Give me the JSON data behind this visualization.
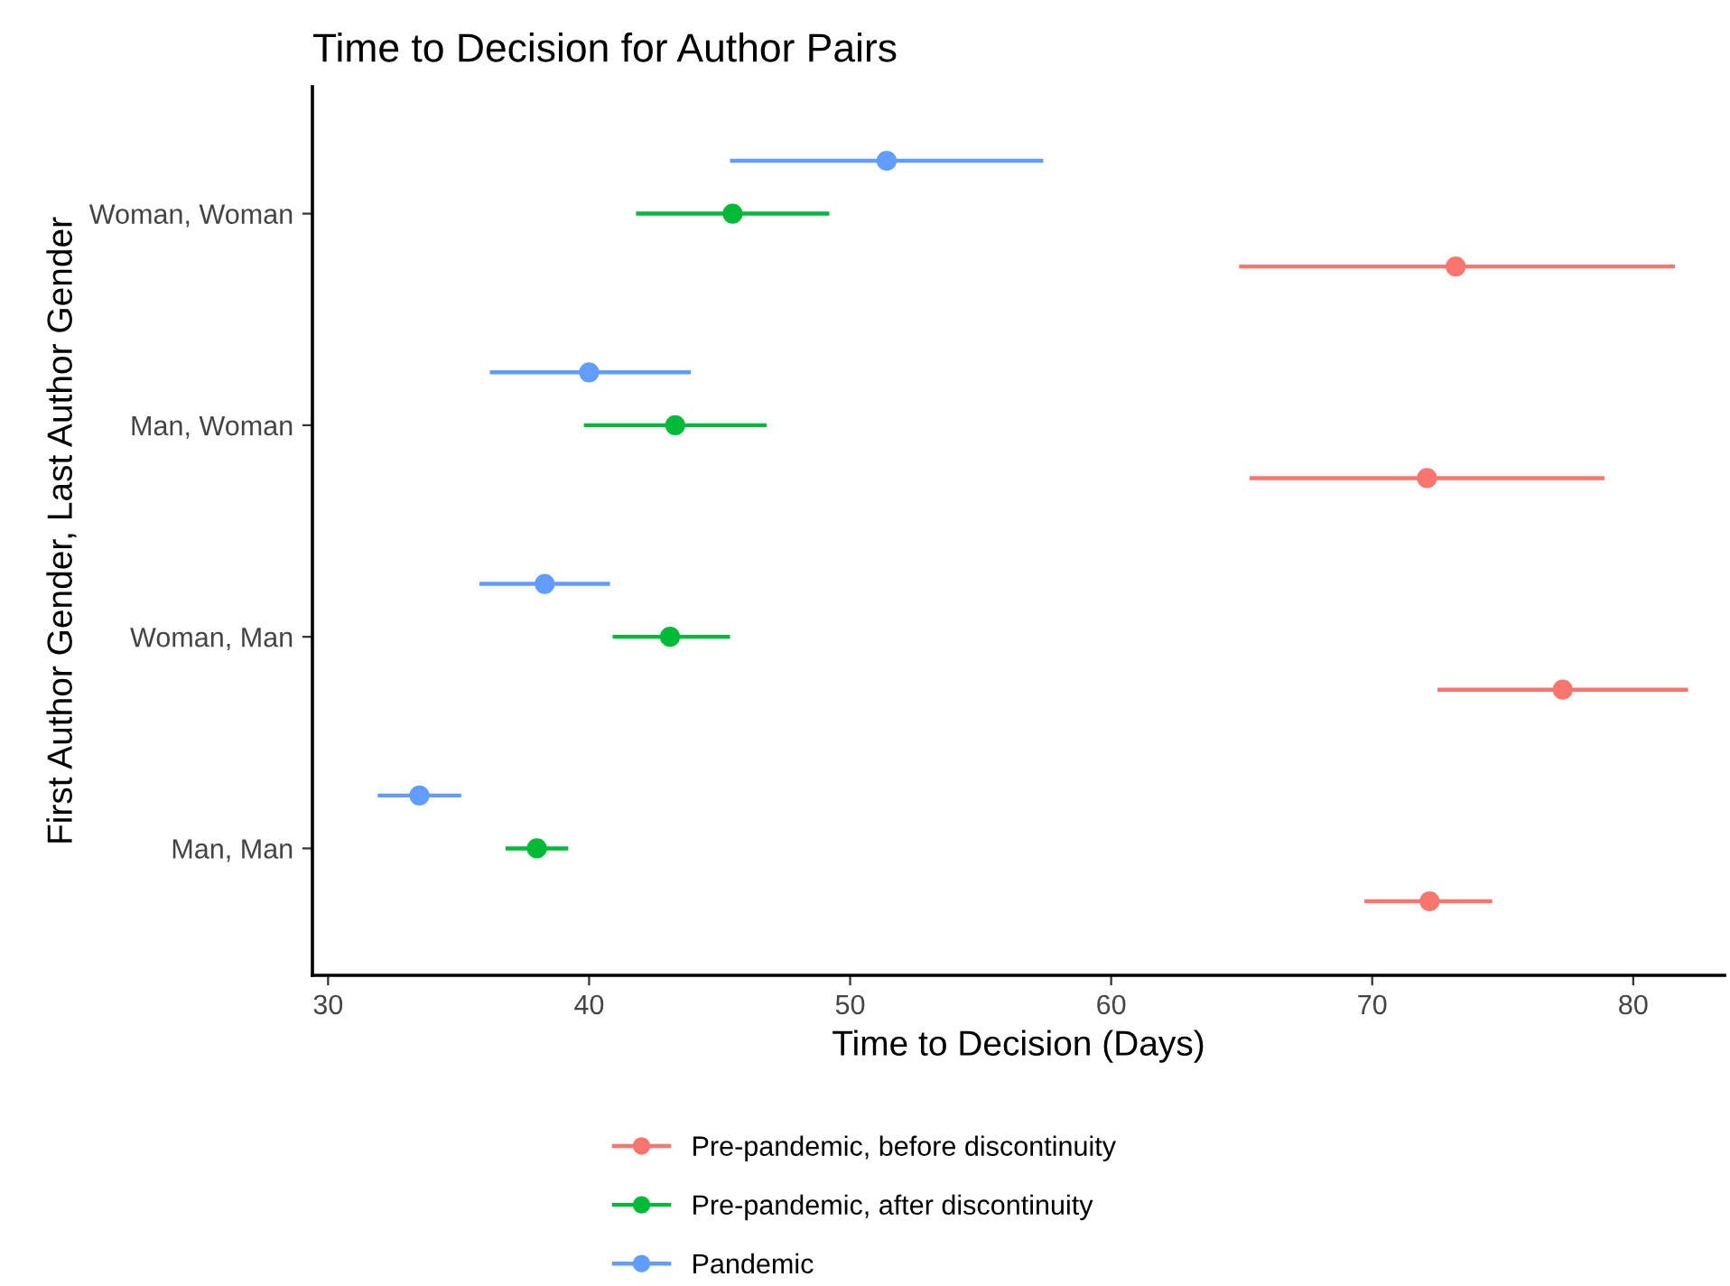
{
  "chart_data": {
    "type": "scatter",
    "orientation": "horizontal",
    "title": "Time to Decision for Author Pairs",
    "xlabel": "Time to Decision (Days)",
    "ylabel": "First Author Gender, Last Author Gender",
    "categories": [
      "Woman, Woman",
      "Man, Woman",
      "Woman, Man",
      "Man, Man"
    ],
    "series": [
      {
        "name": "Pre-pandemic, before discontinuity",
        "color": "#f8766d",
        "values": [
          73.2,
          72.1,
          77.3,
          72.2
        ],
        "errors": [
          [
            64.9,
            81.6
          ],
          [
            65.3,
            78.9
          ],
          [
            72.5,
            82.1
          ],
          [
            69.7,
            74.6
          ]
        ]
      },
      {
        "name": "Pre-pandemic, after discontinuity",
        "color": "#00ba38",
        "values": [
          45.5,
          43.3,
          43.1,
          38.0
        ],
        "errors": [
          [
            41.8,
            49.2
          ],
          [
            39.8,
            46.8
          ],
          [
            40.9,
            45.4
          ],
          [
            36.8,
            39.2
          ]
        ]
      },
      {
        "name": "Pandemic",
        "color": "#619cff",
        "values": [
          51.4,
          40.0,
          38.3,
          33.5
        ],
        "errors": [
          [
            45.4,
            57.4
          ],
          [
            36.2,
            43.9
          ],
          [
            35.8,
            40.8
          ],
          [
            31.9,
            35.1
          ]
        ]
      }
    ],
    "xlim": [
      29.4,
      83.5
    ],
    "xticks": [
      30,
      40,
      50,
      60,
      70,
      80
    ],
    "marker": "circle",
    "grid": false,
    "legend": "bottom"
  }
}
